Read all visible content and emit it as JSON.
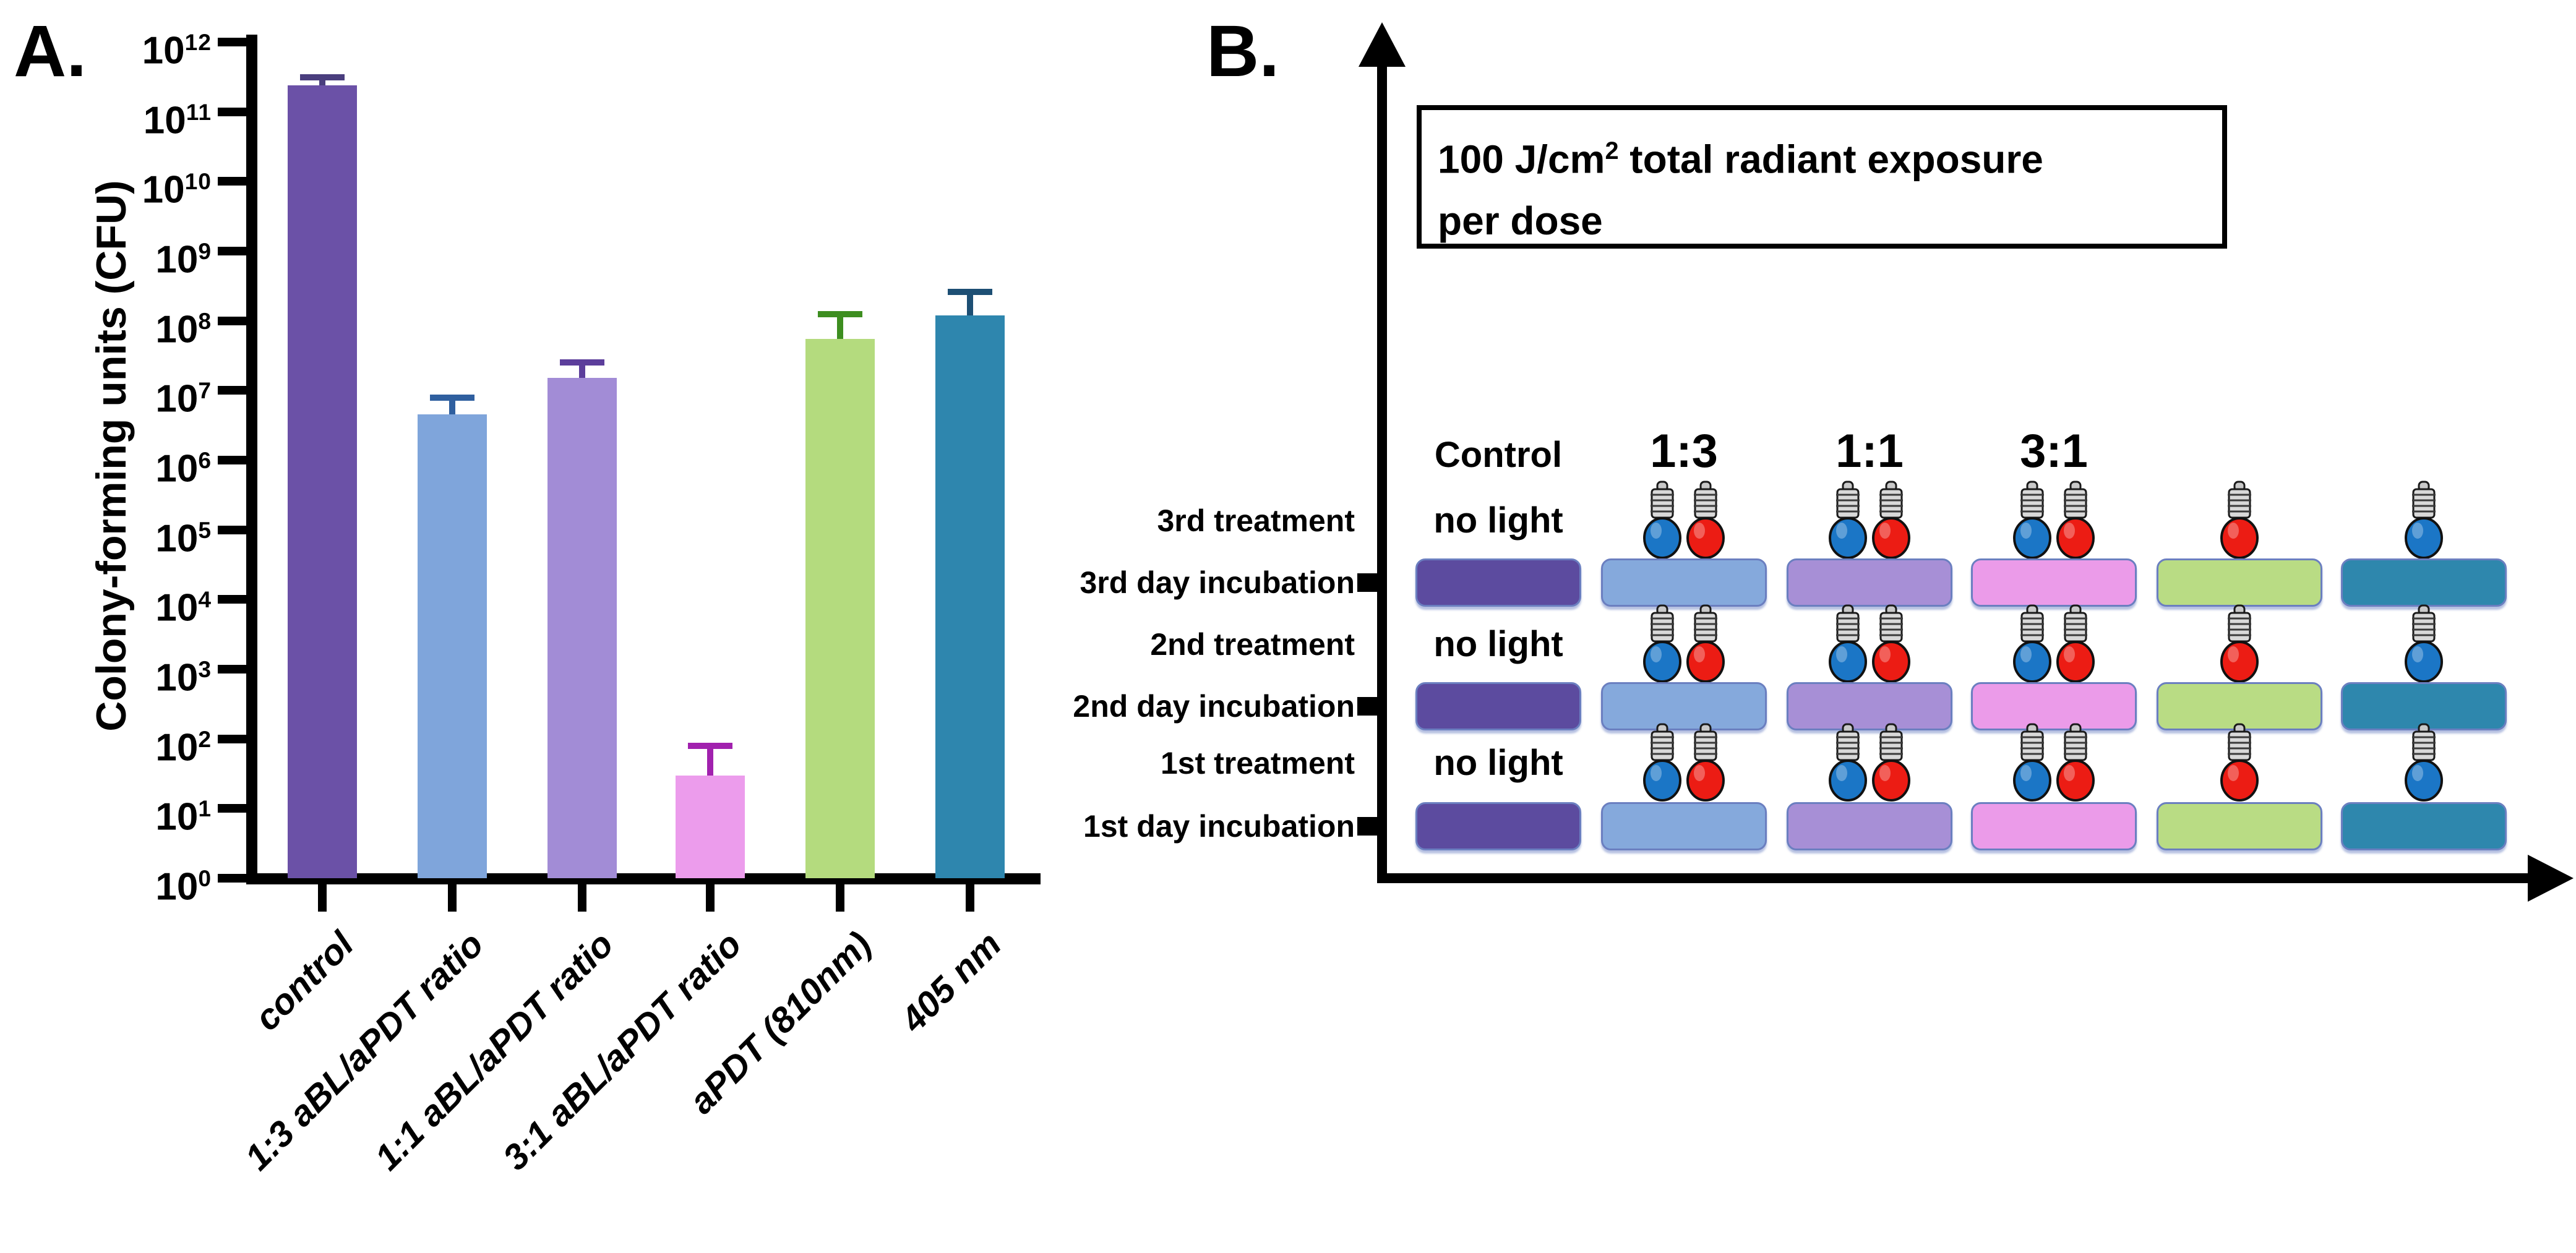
{
  "figure": {
    "panelA_label": "A.",
    "panelB_label": "B."
  },
  "chart_data": {
    "type": "bar",
    "yscale": "log",
    "title": "",
    "xlabel": "",
    "ylabel": "Colony-forming units (CFU)",
    "ylim": [
      1,
      1000000000000
    ],
    "grid": false,
    "legend_position": "none",
    "y_tick_exponents": [
      0,
      1,
      2,
      3,
      4,
      5,
      6,
      7,
      8,
      9,
      10,
      11,
      12
    ],
    "categories": [
      "control",
      "1:3 aBL/aPDT ratio",
      "1:1 aBL/aPDT ratio",
      "3:1 aBL/aPDT ratio",
      "aPDT (810nm)",
      "405 nm"
    ],
    "values": [
      240000000000,
      4500000,
      15000000,
      30,
      55000000,
      120000000
    ],
    "error_top": [
      310000000000,
      7800000,
      25000000,
      80,
      125000000,
      260000000
    ],
    "bar_colors": [
      "#6B51A7",
      "#7FA5DB",
      "#A28CD6",
      "#EC9CEC",
      "#B4DB7E",
      "#2E86AE"
    ],
    "error_colors": [
      "#4A3E7E",
      "#2F5F9F",
      "#5C3E9B",
      "#A121AE",
      "#3D8E20",
      "#1D4F74"
    ]
  },
  "panelB": {
    "radiant_box": {
      "pre": "100 J/cm",
      "sup": "2",
      "post": " total radiant exposure",
      "line2": "per dose"
    },
    "no_light_label": "no light",
    "row_labels": [
      "3rd treatment",
      "3rd day incubation",
      "2nd treatment",
      "2nd day incubation",
      "1st treatment",
      "1st day incubation"
    ],
    "columns": [
      {
        "header": "Control",
        "bulbs": [],
        "box_color": "#5C4B9F"
      },
      {
        "header": "1:3",
        "bulbs": [
          "blue",
          "red"
        ],
        "box_color": "#85A9DC"
      },
      {
        "header": "1:1",
        "bulbs": [
          "blue",
          "red"
        ],
        "box_color": "#A78FD6"
      },
      {
        "header": "3:1",
        "bulbs": [
          "blue",
          "red"
        ],
        "box_color": "#EB9BE9"
      },
      {
        "header": "",
        "bulbs": [
          "red"
        ],
        "box_color": "#B9DC84"
      },
      {
        "header": "",
        "bulbs": [
          "blue"
        ],
        "box_color": "#2E87AD"
      }
    ],
    "bulb_colors": {
      "blue": "#1B76C6",
      "red": "#EC1C14"
    }
  }
}
